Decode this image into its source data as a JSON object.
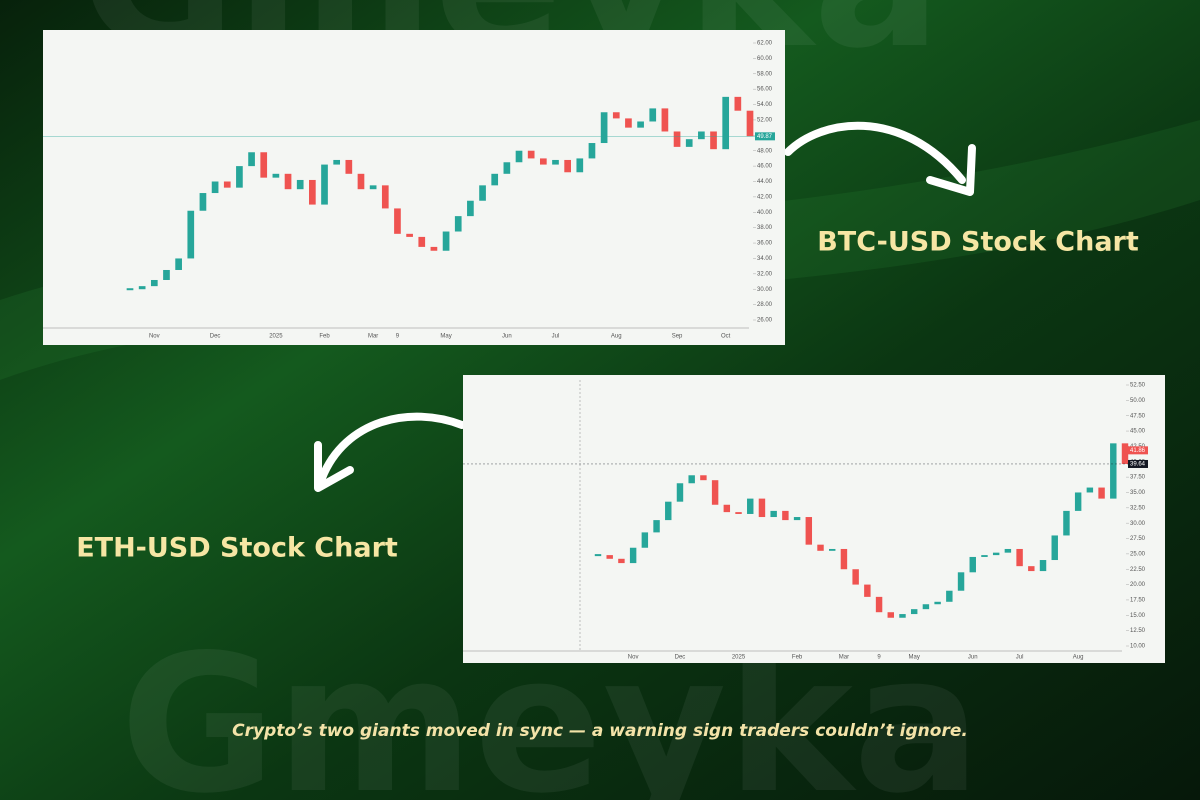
{
  "watermark": "Gmeyka",
  "caption": "Crypto’s two giants moved in sync — a warning sign traders couldn’t ignore.",
  "chart_data": [
    {
      "type": "candlestick",
      "title": "BTC-USD Stock Chart",
      "categories": [
        null,
        null,
        "Nov",
        null,
        null,
        null,
        null,
        "Dec",
        null,
        null,
        null,
        null,
        "2025",
        null,
        null,
        null,
        "Feb",
        null,
        null,
        null,
        "Mar",
        null,
        "9",
        null,
        null,
        null,
        "May",
        null,
        null,
        null,
        null,
        "Jun",
        null,
        null,
        null,
        "Jul",
        null,
        null,
        null,
        null,
        "Aug",
        null,
        null,
        null,
        null,
        "Sep",
        null,
        null,
        null,
        "Oct",
        null,
        null
      ],
      "values": [
        30.0,
        30.4,
        31.2,
        32.5,
        34.0,
        40.2,
        42.5,
        44.0,
        43.2,
        46.0,
        47.8,
        44.5,
        45.0,
        43.0,
        44.2,
        41.0,
        46.2,
        46.8,
        45.0,
        43.0,
        43.5,
        40.5,
        37.2,
        36.8,
        35.5,
        35.0,
        37.5,
        39.5,
        41.5,
        43.5,
        45.0,
        46.5,
        48.0,
        47.0,
        46.2,
        46.8,
        45.2,
        47.0,
        49.0,
        53.0,
        52.2,
        51.0,
        51.8,
        53.5,
        50.5,
        48.5,
        49.5,
        50.5,
        48.2,
        55.0,
        53.2,
        49.87
      ],
      "up_color": "#26a69a",
      "down_color": "#ef5350",
      "ylim": [
        26,
        62
      ],
      "yticks": [
        {
          "value": 26,
          "label": "26.00"
        },
        {
          "value": 28,
          "label": "28.00"
        },
        {
          "value": 30,
          "label": "30.00"
        },
        {
          "value": 32,
          "label": "32.00"
        },
        {
          "value": 34,
          "label": "34.00"
        },
        {
          "value": 36,
          "label": "36.00"
        },
        {
          "value": 38,
          "label": "38.00"
        },
        {
          "value": 40,
          "label": "40.00"
        },
        {
          "value": 42,
          "label": "42.00"
        },
        {
          "value": 44,
          "label": "44.00"
        },
        {
          "value": 46,
          "label": "46.00"
        },
        {
          "value": 48,
          "label": "48.00"
        },
        {
          "value": 50,
          "label": "50.00"
        },
        {
          "value": 52,
          "label": "52.00"
        },
        {
          "value": 54,
          "label": "54.00"
        },
        {
          "value": 56,
          "label": "56.00"
        },
        {
          "value": 58,
          "label": "58.00"
        },
        {
          "value": 60,
          "label": "60.00"
        },
        {
          "value": 62,
          "label": "62.00"
        }
      ],
      "price_markers": [
        {
          "value": 49.87,
          "color": "#26a69a",
          "line": "solid"
        }
      ]
    },
    {
      "type": "candlestick",
      "title": "ETH-USD Stock Chart",
      "categories": [
        null,
        null,
        null,
        "Nov",
        null,
        null,
        null,
        "Dec",
        null,
        null,
        null,
        null,
        "2025",
        null,
        null,
        null,
        null,
        "Feb",
        null,
        null,
        null,
        "Mar",
        null,
        null,
        "9",
        null,
        null,
        "May",
        null,
        null,
        null,
        null,
        "Jun",
        null,
        null,
        null,
        "Jul",
        null,
        null,
        null,
        null,
        "Aug",
        null,
        null,
        null,
        null
      ],
      "values": [
        24.8,
        24.2,
        23.5,
        26.0,
        28.5,
        30.5,
        33.5,
        36.5,
        37.8,
        37.0,
        33.0,
        31.8,
        31.5,
        34.0,
        31.0,
        32.0,
        30.5,
        31.0,
        26.5,
        25.5,
        25.8,
        22.5,
        20.0,
        18.0,
        15.5,
        14.6,
        15.2,
        16.0,
        16.8,
        17.2,
        19.0,
        22.0,
        24.5,
        24.8,
        25.2,
        25.8,
        23.0,
        22.2,
        24.0,
        28.0,
        32.0,
        35.0,
        35.8,
        34.0,
        43.0,
        39.64
      ],
      "up_color": "#26a69a",
      "down_color": "#ef5350",
      "ylim": [
        10,
        52.5
      ],
      "yticks": [
        {
          "value": 10,
          "label": "10.00"
        },
        {
          "value": 12.5,
          "label": "12.50"
        },
        {
          "value": 15,
          "label": "15.00"
        },
        {
          "value": 17.5,
          "label": "17.50"
        },
        {
          "value": 20,
          "label": "20.00"
        },
        {
          "value": 22.5,
          "label": "22.50"
        },
        {
          "value": 25,
          "label": "25.00"
        },
        {
          "value": 27.5,
          "label": "27.50"
        },
        {
          "value": 30,
          "label": "30.00"
        },
        {
          "value": 32.5,
          "label": "32.50"
        },
        {
          "value": 35,
          "label": "35.00"
        },
        {
          "value": 37.5,
          "label": "37.50"
        },
        {
          "value": 40,
          "label": "40.00"
        },
        {
          "value": 42.5,
          "label": "42.50"
        },
        {
          "value": 45,
          "label": "45.00"
        },
        {
          "value": 47.5,
          "label": "47.50"
        },
        {
          "value": 50,
          "label": "50.00"
        },
        {
          "value": 52.5,
          "label": "52.50"
        }
      ],
      "price_markers": [
        {
          "value": 41.86,
          "color": "#ef5350"
        },
        {
          "value": 39.64,
          "color": "#131722",
          "line": "dashed"
        }
      ]
    }
  ]
}
